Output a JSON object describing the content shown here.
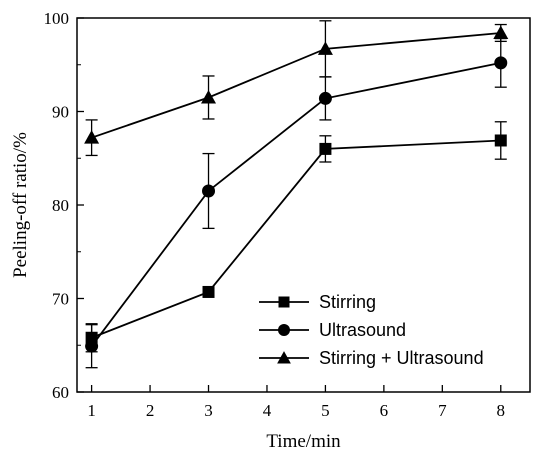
{
  "chart_data": {
    "type": "line",
    "xlabel": "Time/min",
    "ylabel": "Peeling-off ratio/%",
    "xlim": [
      0.75,
      8.5
    ],
    "ylim": [
      60,
      100
    ],
    "xticks": [
      1,
      2,
      3,
      4,
      5,
      6,
      7,
      8
    ],
    "yticks": [
      60,
      70,
      80,
      90,
      100
    ],
    "grid": false,
    "legend_position": "bottom-right",
    "series": [
      {
        "name": "Stirring",
        "marker": "square",
        "x": [
          1,
          3,
          5,
          8
        ],
        "y": [
          65.8,
          70.7,
          86.0,
          86.9
        ],
        "err": [
          1.5,
          0.4,
          1.4,
          2.0
        ]
      },
      {
        "name": "Ultrasound",
        "marker": "circle",
        "x": [
          1,
          3,
          5,
          8
        ],
        "y": [
          64.9,
          81.5,
          91.4,
          95.2
        ],
        "err": [
          2.3,
          4.0,
          2.3,
          2.6
        ]
      },
      {
        "name": "Stirring + Ultrasound",
        "marker": "triangle",
        "x": [
          1,
          3,
          5,
          8
        ],
        "y": [
          87.2,
          91.5,
          96.7,
          98.4
        ],
        "err": [
          1.9,
          2.3,
          3.0,
          0.9
        ]
      }
    ]
  }
}
